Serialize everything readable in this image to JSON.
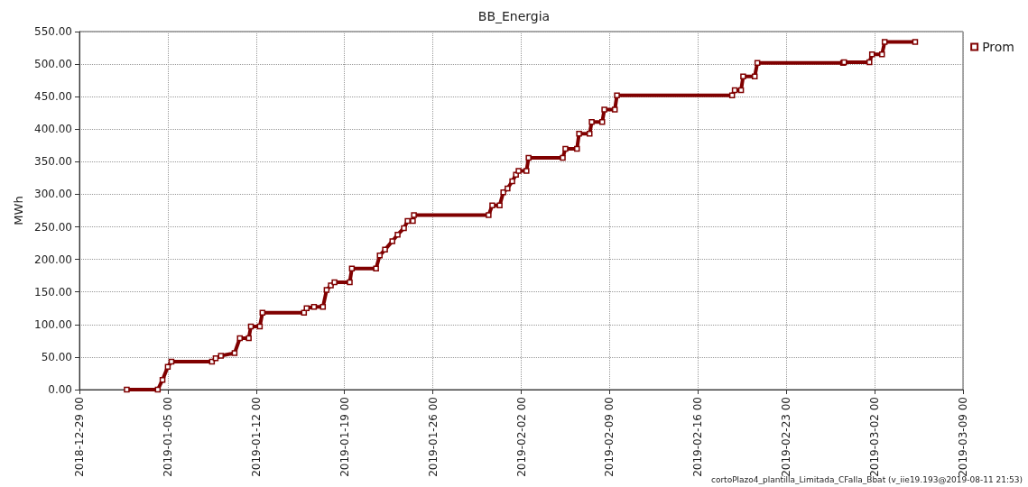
{
  "chart_data": {
    "type": "line",
    "title": "BB_Energia",
    "ylabel": "MWh",
    "marker": "square",
    "grid": true,
    "legend": "top right",
    "annotations": [
      "cortoPlazo4_plantilla_Limitada_CFalla_Bbat (v_iie19.193@2019-08-11 21:53)"
    ],
    "xlim": [
      "2018-12-29",
      "2019-03-09"
    ],
    "xticks": [
      {
        "value": "2018-12-29",
        "label": "2018-12-29 00"
      },
      {
        "value": "2019-01-05",
        "label": "2019-01-05 00"
      },
      {
        "value": "2019-01-12",
        "label": "2019-01-12 00"
      },
      {
        "value": "2019-01-19",
        "label": "2019-01-19 00"
      },
      {
        "value": "2019-01-26",
        "label": "2019-01-26 00"
      },
      {
        "value": "2019-02-02",
        "label": "2019-02-02 00"
      },
      {
        "value": "2019-02-09",
        "label": "2019-02-09 00"
      },
      {
        "value": "2019-02-16",
        "label": "2019-02-16 00"
      },
      {
        "value": "2019-02-23",
        "label": "2019-02-23 00"
      },
      {
        "value": "2019-03-02",
        "label": "2019-03-02 00"
      },
      {
        "value": "2019-03-09",
        "label": "2019-03-09 00"
      }
    ],
    "ylim": [
      0,
      550
    ],
    "yticks": [
      {
        "value": 0,
        "label": "0.00"
      },
      {
        "value": 50,
        "label": "50.00"
      },
      {
        "value": 100,
        "label": "100.00"
      },
      {
        "value": 150,
        "label": "150.00"
      },
      {
        "value": 200,
        "label": "200.00"
      },
      {
        "value": 250,
        "label": "250.00"
      },
      {
        "value": 300,
        "label": "300.00"
      },
      {
        "value": 350,
        "label": "350.00"
      },
      {
        "value": 400,
        "label": "400.00"
      },
      {
        "value": 450,
        "label": "450.00"
      },
      {
        "value": 500,
        "label": "500.00"
      },
      {
        "value": 550,
        "label": "550.00"
      }
    ],
    "series": [
      {
        "name": "Prom",
        "color": "#800000",
        "x": [
          "2019-01-01T18:00",
          "2019-01-04T05:00",
          "2019-01-04T14:00",
          "2019-01-05T00:00",
          "2019-01-05T07:00",
          "2019-01-08T12:00",
          "2019-01-08T19:00",
          "2019-01-09T05:00",
          "2019-01-10T07:00",
          "2019-01-10T17:00",
          "2019-01-11T10:00",
          "2019-01-11T14:00",
          "2019-01-12T07:00",
          "2019-01-12T12:00",
          "2019-01-15T19:00",
          "2019-01-16T00:00",
          "2019-01-16T14:00",
          "2019-01-17T07:00",
          "2019-01-17T14:00",
          "2019-01-17T22:00",
          "2019-01-18T05:00",
          "2019-01-19T10:00",
          "2019-01-19T14:00",
          "2019-01-21T12:00",
          "2019-01-21T19:00",
          "2019-01-22T05:00",
          "2019-01-22T19:00",
          "2019-01-23T05:00",
          "2019-01-23T17:00",
          "2019-01-24T00:00",
          "2019-01-24T10:00",
          "2019-01-24T12:00",
          "2019-01-30T10:00",
          "2019-01-30T17:00",
          "2019-01-31T07:00",
          "2019-01-31T14:00",
          "2019-01-31T22:00",
          "2019-02-01T07:00",
          "2019-02-01T14:00",
          "2019-02-01T19:00",
          "2019-02-02T10:00",
          "2019-02-02T14:00",
          "2019-02-05T07:00",
          "2019-02-05T12:00",
          "2019-02-06T10:00",
          "2019-02-06T14:00",
          "2019-02-07T10:00",
          "2019-02-07T14:00",
          "2019-02-08T10:00",
          "2019-02-08T14:00",
          "2019-02-09T10:00",
          "2019-02-09T14:00",
          "2019-02-18T17:00",
          "2019-02-18T22:00",
          "2019-02-19T10:00",
          "2019-02-19T14:00",
          "2019-02-20T12:00",
          "2019-02-20T17:00",
          "2019-02-27T12:00",
          "2019-02-27T14:00",
          "2019-03-01T14:00",
          "2019-03-01T19:00",
          "2019-03-02T14:00",
          "2019-03-02T19:00",
          "2019-03-05T05:00"
        ],
        "values": [
          0,
          0,
          15,
          35,
          43,
          43,
          48,
          52,
          56,
          79,
          79,
          97,
          97,
          118,
          118,
          125,
          127,
          127,
          153,
          160,
          165,
          165,
          186,
          186,
          206,
          215,
          228,
          238,
          248,
          259,
          259,
          268,
          268,
          283,
          283,
          303,
          309,
          320,
          330,
          336,
          336,
          356,
          356,
          370,
          370,
          393,
          393,
          411,
          411,
          430,
          430,
          452,
          452,
          460,
          460,
          481,
          481,
          502,
          502,
          503,
          503,
          515,
          515,
          534,
          534
        ]
      }
    ]
  }
}
